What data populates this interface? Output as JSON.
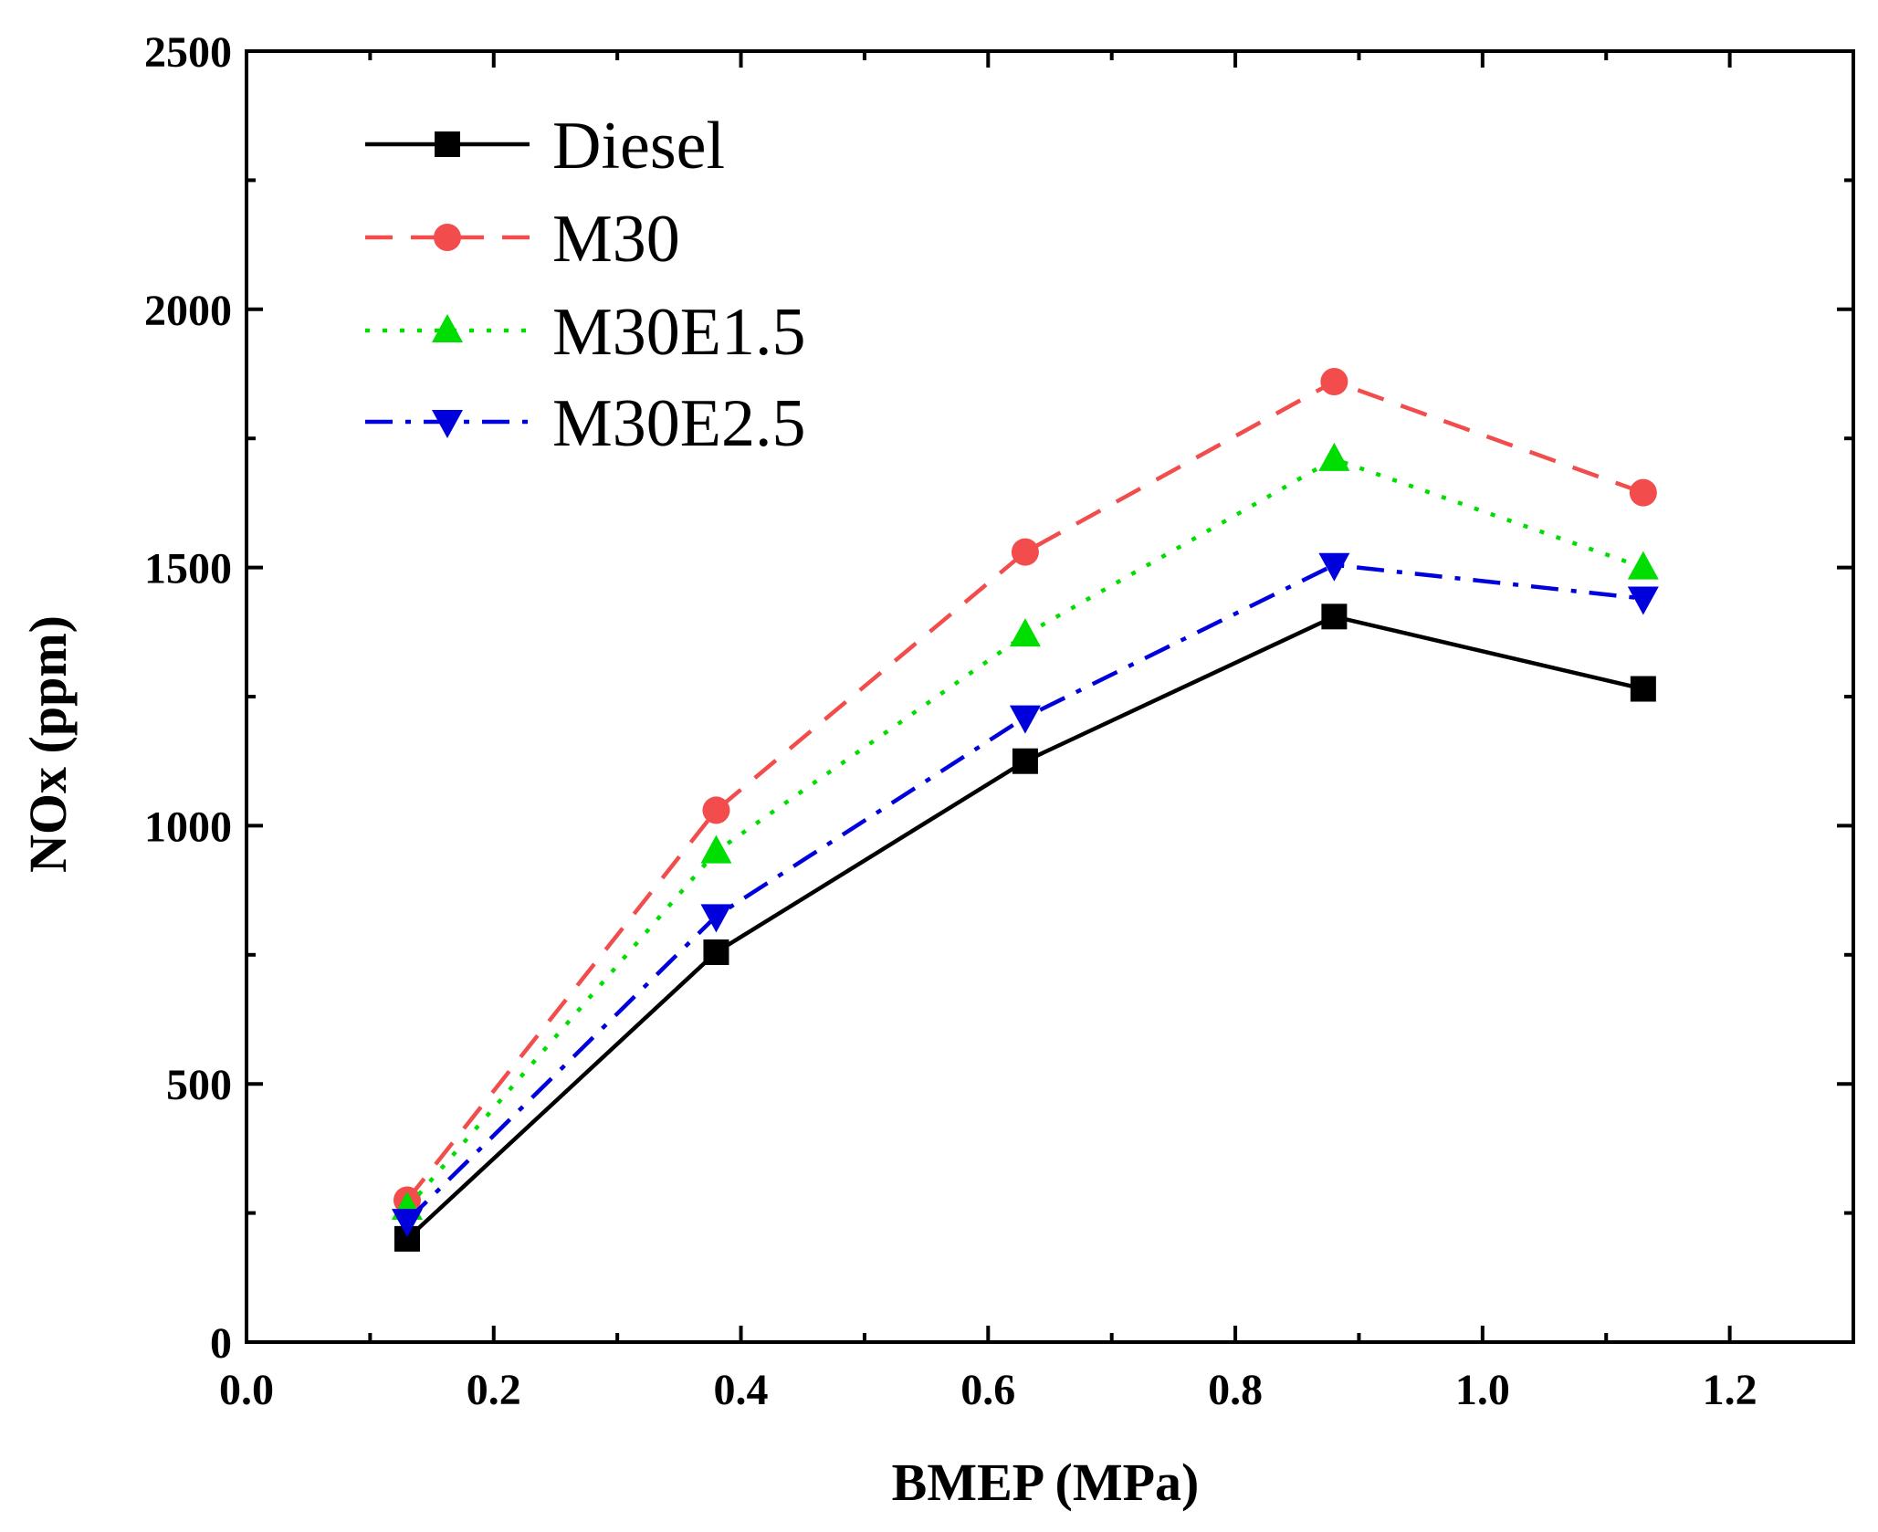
{
  "chart_data": {
    "type": "line",
    "title": "",
    "xlabel": "BMEP (MPa)",
    "ylabel": "NOx (ppm)",
    "xlim": [
      0.0,
      1.3
    ],
    "ylim": [
      0,
      2500
    ],
    "x_ticks": [
      0.0,
      0.2,
      0.4,
      0.6,
      0.8,
      1.0,
      1.2
    ],
    "x_tick_labels": [
      "0.0",
      "0.2",
      "0.4",
      "0.6",
      "0.8",
      "1.0",
      "1.2"
    ],
    "y_ticks": [
      0,
      500,
      1000,
      1500,
      2000,
      2500
    ],
    "y_tick_labels": [
      "0",
      "500",
      "1000",
      "1500",
      "2000",
      "2500"
    ],
    "grid": false,
    "legend_position": "top-left",
    "x": [
      0.13,
      0.38,
      0.63,
      0.88,
      1.13
    ],
    "series": [
      {
        "name": "Diesel",
        "values": [
          200,
          755,
          1125,
          1405,
          1265
        ],
        "color": "#000000",
        "dash": "solid",
        "marker": "square"
      },
      {
        "name": "M30",
        "values": [
          275,
          1030,
          1530,
          1860,
          1645
        ],
        "color": "#f24c4c",
        "dash": "dash",
        "marker": "circle"
      },
      {
        "name": "M30E1.5",
        "values": [
          260,
          950,
          1370,
          1710,
          1500
        ],
        "color": "#00dd00",
        "dash": "dot",
        "marker": "triangle-up"
      },
      {
        "name": "M30E2.5",
        "values": [
          235,
          825,
          1210,
          1505,
          1440
        ],
        "color": "#0000dd",
        "dash": "dash-dot",
        "marker": "triangle-down"
      }
    ]
  }
}
